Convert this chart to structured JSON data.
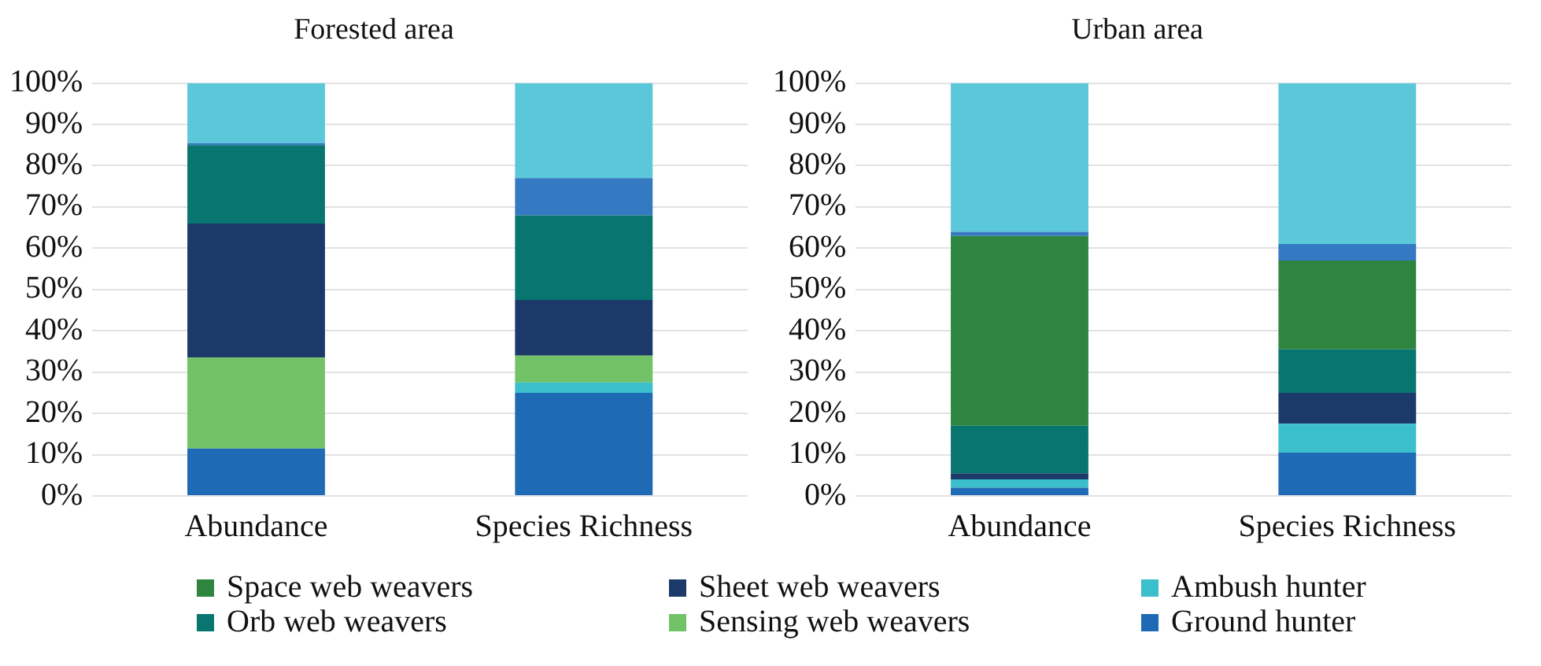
{
  "chart_data": [
    {
      "type": "bar",
      "title": "Forested area",
      "categories": [
        "Abundance",
        "Species Richness"
      ],
      "stacked": true,
      "ylim": [
        0,
        100
      ],
      "yticks": [
        {
          "value": 0,
          "label": "0%"
        },
        {
          "value": 10,
          "label": "10%"
        },
        {
          "value": 20,
          "label": "20%"
        },
        {
          "value": 30,
          "label": "30%"
        },
        {
          "value": 40,
          "label": "40%"
        },
        {
          "value": 50,
          "label": "50%"
        },
        {
          "value": 60,
          "label": "60%"
        },
        {
          "value": 70,
          "label": "70%"
        },
        {
          "value": 80,
          "label": "80%"
        },
        {
          "value": 90,
          "label": "90%"
        },
        {
          "value": 100,
          "label": "100%"
        }
      ],
      "grid": "y",
      "legend": "bottom",
      "series": [
        {
          "name": "Ground hunter",
          "color": "#1f6ab5",
          "values": [
            11.5,
            25
          ]
        },
        {
          "name": "Ambush hunter",
          "color": "#3bbfcc",
          "values": [
            null,
            2.5
          ]
        },
        {
          "name": "Sensing web weavers",
          "color": "#72c267",
          "values": [
            22,
            6.5
          ]
        },
        {
          "name": "Sheet web weavers",
          "color": "#1b3a69",
          "values": [
            32.5,
            13.5
          ]
        },
        {
          "name": "Orb web weavers",
          "color": "#087571",
          "values": [
            19,
            20.5
          ]
        },
        {
          "name": "Space web weavers",
          "color": "#2e8540",
          "values": [
            null,
            null
          ]
        },
        {
          "color": "#3479c1",
          "values": [
            0.5,
            9
          ]
        },
        {
          "color": "#5bc8da",
          "values": [
            14.5,
            23
          ]
        }
      ]
    },
    {
      "type": "bar",
      "title": "Urban area",
      "categories": [
        "Abundance",
        "Species Richness"
      ],
      "stacked": true,
      "ylim": [
        0,
        100
      ],
      "yticks": [
        {
          "value": 0,
          "label": "0%"
        },
        {
          "value": 10,
          "label": "10%"
        },
        {
          "value": 20,
          "label": "20%"
        },
        {
          "value": 30,
          "label": "30%"
        },
        {
          "value": 40,
          "label": "40%"
        },
        {
          "value": 50,
          "label": "50%"
        },
        {
          "value": 60,
          "label": "60%"
        },
        {
          "value": 70,
          "label": "70%"
        },
        {
          "value": 80,
          "label": "80%"
        },
        {
          "value": 90,
          "label": "90%"
        },
        {
          "value": 100,
          "label": "100%"
        }
      ],
      "grid": "y",
      "series": [
        {
          "color": "#1f6ab5",
          "values": [
            2,
            10.5
          ]
        },
        {
          "color": "#3bbfcc",
          "values": [
            2,
            7
          ]
        },
        {
          "color": "#72c267",
          "values": [
            null,
            null
          ]
        },
        {
          "color": "#1b3a69",
          "values": [
            1.5,
            7.5
          ]
        },
        {
          "color": "#087571",
          "values": [
            11.5,
            10.5
          ]
        },
        {
          "color": "#2e8540",
          "values": [
            46,
            21.5
          ]
        },
        {
          "color": "#3479c1",
          "values": [
            1,
            4
          ]
        },
        {
          "color": "#5bc8da",
          "values": [
            36,
            39
          ]
        }
      ]
    }
  ]
}
